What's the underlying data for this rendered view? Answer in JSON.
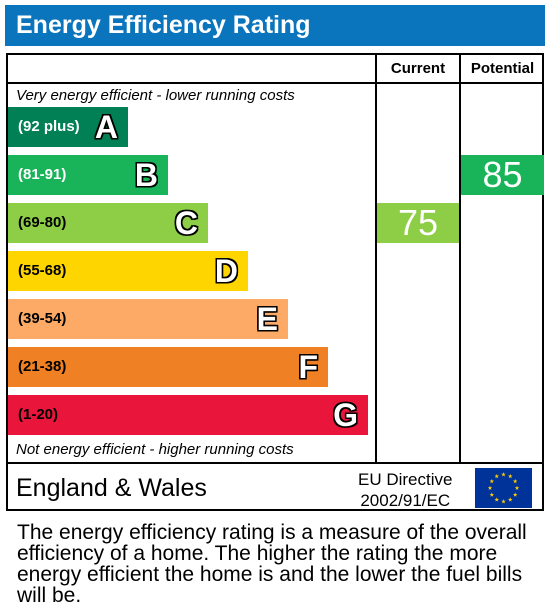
{
  "header": {
    "title": "Energy Efficiency Rating"
  },
  "columns": {
    "current": "Current",
    "potential": "Potential"
  },
  "notes": {
    "top": "Very energy efficient - lower running costs",
    "bottom": "Not energy efficient - higher running costs"
  },
  "chart_data": {
    "type": "bar",
    "title": "Energy Efficiency Rating",
    "bands": [
      {
        "letter": "A",
        "range": "(92 plus)",
        "color": "#008054",
        "range_color": "#ffffff"
      },
      {
        "letter": "B",
        "range": "(81-91)",
        "color": "#19b459",
        "range_color": "#ffffff"
      },
      {
        "letter": "C",
        "range": "(69-80)",
        "color": "#8dce46",
        "range_color": "#000000"
      },
      {
        "letter": "D",
        "range": "(55-68)",
        "color": "#ffd500",
        "range_color": "#000000"
      },
      {
        "letter": "E",
        "range": "(39-54)",
        "color": "#fcaa65",
        "range_color": "#000000"
      },
      {
        "letter": "F",
        "range": "(21-38)",
        "color": "#ef8023",
        "range_color": "#000000"
      },
      {
        "letter": "G",
        "range": "(1-20)",
        "color": "#e9153b",
        "range_color": "#000000"
      }
    ],
    "current": {
      "value": 75,
      "band": "C",
      "color": "#8dce46"
    },
    "potential": {
      "value": 85,
      "band": "B",
      "color": "#19b459"
    }
  },
  "footer": {
    "region": "England & Wales",
    "directive_line1": "EU Directive",
    "directive_line2": "2002/91/EC"
  },
  "description": "The energy efficiency rating is a measure of the overall efficiency of a home. The higher the rating the more energy efficient the home is and the lower the fuel bills will be."
}
